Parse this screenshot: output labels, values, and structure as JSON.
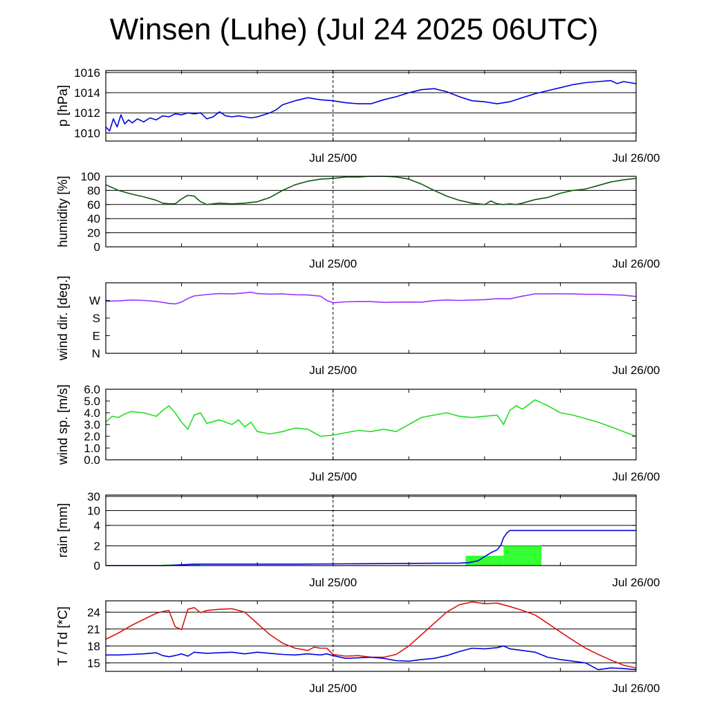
{
  "chart_data": [
    {
      "id": "pressure",
      "type": "line",
      "title": "Winsen (Luhe) (Jul 24 2025 06UTC)",
      "ylabel": "p [hPa]",
      "ylim": [
        1009.2,
        1016.2
      ],
      "yticks": [
        1010,
        1012,
        1014,
        1016
      ],
      "yticklabels": [
        "1010",
        "1012",
        "1014",
        "1016"
      ],
      "grid": true,
      "xlim": [
        0,
        42
      ],
      "xtick_labels": [
        {
          "x": 18,
          "label": "Jul 25/00"
        },
        {
          "x": 42,
          "label": "Jul 26/00"
        }
      ],
      "series": [
        {
          "color": "#0000dd",
          "x": [
            0,
            0.3,
            0.6,
            0.9,
            1.2,
            1.5,
            1.8,
            2.1,
            2.5,
            3,
            3.5,
            4,
            4.5,
            5,
            5.5,
            6,
            6.5,
            7,
            7.5,
            8,
            8.5,
            9,
            9.5,
            10,
            10.5,
            11,
            11.5,
            12,
            12.5,
            13,
            13.5,
            14,
            15,
            16,
            17,
            18,
            18.5,
            19,
            20,
            21,
            22,
            23,
            24,
            25,
            26,
            27,
            28,
            29,
            30,
            31,
            32,
            33,
            34,
            35,
            36,
            37,
            38,
            39,
            40,
            40.5,
            41,
            41.5,
            42
          ],
          "y": [
            1010.6,
            1010.2,
            1011.4,
            1010.6,
            1011.8,
            1010.9,
            1011.3,
            1011.0,
            1011.4,
            1011.1,
            1011.5,
            1011.3,
            1011.7,
            1011.6,
            1011.9,
            1011.8,
            1012.0,
            1011.9,
            1012.0,
            1011.4,
            1011.6,
            1012.1,
            1011.7,
            1011.6,
            1011.7,
            1011.6,
            1011.5,
            1011.6,
            1011.8,
            1012.0,
            1012.3,
            1012.8,
            1013.2,
            1013.5,
            1013.3,
            1013.2,
            1013.1,
            1013.0,
            1012.9,
            1012.9,
            1013.3,
            1013.6,
            1014.0,
            1014.3,
            1014.4,
            1014.1,
            1013.6,
            1013.2,
            1013.1,
            1012.9,
            1013.1,
            1013.5,
            1013.9,
            1014.2,
            1014.5,
            1014.8,
            1015.0,
            1015.1,
            1015.2,
            1014.9,
            1015.1,
            1015.0,
            1014.9
          ]
        }
      ]
    },
    {
      "id": "humidity",
      "type": "line",
      "ylabel": "humidity [%]",
      "ylim": [
        0,
        100
      ],
      "yticks": [
        0,
        20,
        40,
        60,
        80,
        100
      ],
      "yticklabels": [
        "0",
        "20",
        "40",
        "60",
        "80",
        "100"
      ],
      "grid": true,
      "xlim": [
        0,
        42
      ],
      "xtick_labels": [
        {
          "x": 18,
          "label": "Jul 25/00"
        },
        {
          "x": 42,
          "label": "Jul 26/00"
        }
      ],
      "series": [
        {
          "color": "#0a5a0a",
          "x": [
            0,
            1,
            2,
            3,
            4,
            4.5,
            5,
            5.5,
            6,
            6.5,
            7,
            7.5,
            8,
            9,
            10,
            11,
            12,
            13,
            14,
            15,
            16,
            17,
            18,
            19,
            20,
            21,
            22,
            23,
            24,
            25,
            26,
            27,
            28,
            29,
            30,
            30.5,
            31,
            31.5,
            32,
            32.5,
            33,
            34,
            35,
            36,
            37,
            38,
            39,
            40,
            41,
            42
          ],
          "y": [
            88,
            80,
            75,
            71,
            66,
            62,
            61,
            61,
            68,
            73,
            72,
            64,
            60,
            62,
            61,
            62,
            64,
            70,
            80,
            88,
            93,
            96,
            97,
            99,
            99,
            100,
            100,
            99,
            96,
            89,
            80,
            72,
            66,
            62,
            60,
            65,
            61,
            60,
            61,
            60,
            62,
            67,
            70,
            76,
            80,
            82,
            87,
            92,
            95,
            97
          ]
        }
      ]
    },
    {
      "id": "wind-direction",
      "type": "line",
      "ylabel": "wind dir. [deg.]",
      "ylim": [
        0,
        360
      ],
      "yticks": [
        0,
        90,
        180,
        270
      ],
      "yticklabels": [
        "N",
        "E",
        "S",
        "W"
      ],
      "grid": false,
      "xlim": [
        0,
        42
      ],
      "xtick_labels": [
        {
          "x": 18,
          "label": "Jul 25/00"
        },
        {
          "x": 42,
          "label": "Jul 26/00"
        }
      ],
      "series": [
        {
          "color": "#9b30ff",
          "x": [
            0,
            1,
            2,
            3,
            4,
            4.5,
            5,
            5.5,
            6,
            6.5,
            7,
            8,
            9,
            10,
            11,
            11.5,
            12,
            13,
            14,
            15,
            16,
            17,
            17.5,
            18,
            19,
            20,
            21,
            22,
            23,
            24,
            25,
            26,
            27,
            28,
            29,
            30,
            31,
            32,
            33,
            34,
            35,
            36,
            37,
            38,
            39,
            40,
            41,
            42
          ],
          "y": [
            265,
            268,
            272,
            270,
            265,
            260,
            255,
            252,
            262,
            280,
            293,
            300,
            305,
            303,
            308,
            312,
            305,
            302,
            303,
            299,
            298,
            292,
            270,
            258,
            263,
            264,
            264,
            260,
            261,
            262,
            261,
            269,
            272,
            270,
            272,
            274,
            279,
            278,
            292,
            303,
            304,
            304,
            303,
            301,
            301,
            299,
            297,
            290
          ]
        }
      ]
    },
    {
      "id": "wind-speed",
      "type": "line",
      "ylabel": "wind sp. [m/s]",
      "ylim": [
        0,
        6
      ],
      "yticks": [
        0,
        1,
        2,
        3,
        4,
        5,
        6
      ],
      "yticklabels": [
        "0.0",
        "1.0",
        "2.0",
        "3.0",
        "4.0",
        "5.0",
        "6.0"
      ],
      "grid": false,
      "xlim": [
        0,
        42
      ],
      "xtick_labels": [
        {
          "x": 18,
          "label": "Jul 25/00"
        },
        {
          "x": 42,
          "label": "Jul 26/00"
        }
      ],
      "series": [
        {
          "color": "#22dd22",
          "x": [
            0,
            0.5,
            1,
            1.5,
            2,
            3,
            4,
            4.5,
            5,
            5.5,
            6,
            6.5,
            7,
            7.5,
            8,
            9,
            10,
            10.5,
            11,
            11.5,
            12,
            12.5,
            13,
            14,
            15,
            16,
            17,
            18,
            19,
            20,
            21,
            22,
            23,
            24,
            25,
            26,
            27,
            28,
            29,
            30,
            31,
            31.5,
            32,
            32.5,
            33,
            34,
            35,
            36,
            37,
            38,
            39,
            40,
            41,
            42
          ],
          "y": [
            3.2,
            3.7,
            3.6,
            3.9,
            4.1,
            4.0,
            3.7,
            4.2,
            4.6,
            4.0,
            3.2,
            2.6,
            3.8,
            4.0,
            3.1,
            3.4,
            3.0,
            3.4,
            2.8,
            3.2,
            2.4,
            2.3,
            2.2,
            2.4,
            2.7,
            2.6,
            2.0,
            2.1,
            2.3,
            2.5,
            2.4,
            2.6,
            2.4,
            3.0,
            3.6,
            3.8,
            4.0,
            3.7,
            3.6,
            3.7,
            3.8,
            3.0,
            4.2,
            4.6,
            4.3,
            5.1,
            4.6,
            4.0,
            3.8,
            3.5,
            3.2,
            2.8,
            2.4,
            2.0
          ]
        }
      ]
    },
    {
      "id": "rain",
      "type": "bar",
      "ylabel": "rain [mm]",
      "ylim": [
        0,
        30
      ],
      "yticks": [
        0,
        2,
        4,
        10,
        30
      ],
      "yticklabels": [
        "0",
        "2",
        "4",
        "10",
        "30"
      ],
      "grid": true,
      "xlim": [
        0,
        42
      ],
      "xtick_labels": [
        {
          "x": 18,
          "label": "Jul 25/00"
        },
        {
          "x": 42,
          "label": "Jul 26/00"
        }
      ],
      "bars": [
        {
          "x0": 4.5,
          "x1": 7.5,
          "value": 0.1
        },
        {
          "x0": 28.5,
          "x1": 31.5,
          "value": 1.0
        },
        {
          "x0": 31.5,
          "x1": 34.5,
          "value": 2.0
        }
      ],
      "bar_color": "#33ff33",
      "series": [
        {
          "color": "#0000dd",
          "x": [
            0,
            4.5,
            5.5,
            7,
            15,
            28,
            28.8,
            29.5,
            30,
            30.5,
            31,
            31.3,
            31.5,
            31.8,
            32,
            42
          ],
          "y": [
            0,
            0,
            0.05,
            0.15,
            0.15,
            0.25,
            0.3,
            0.5,
            0.9,
            1.3,
            1.6,
            2.1,
            2.8,
            3.3,
            3.5,
            3.5
          ]
        }
      ]
    },
    {
      "id": "temperature",
      "type": "line",
      "ylabel": "T / Td [*C]",
      "ylim": [
        13.5,
        26
      ],
      "yticks": [
        15,
        18,
        21,
        24
      ],
      "yticklabels": [
        "15",
        "18",
        "21",
        "24"
      ],
      "grid": true,
      "xlim": [
        0,
        42
      ],
      "xtick_labels": [
        {
          "x": 18,
          "label": "Jul 25/00"
        },
        {
          "x": 42,
          "label": "Jul 26/00"
        }
      ],
      "series": [
        {
          "color": "#dd1111",
          "x": [
            0,
            1,
            2,
            3,
            4,
            4.5,
            5,
            5.5,
            6,
            6.5,
            7,
            7.5,
            8,
            9,
            10,
            11,
            12,
            13,
            14,
            15,
            16,
            16.5,
            17,
            17.5,
            18,
            19,
            20,
            21,
            22,
            23,
            24,
            25,
            26,
            27,
            28,
            29,
            30,
            31,
            32,
            33,
            34,
            35,
            36,
            37,
            38,
            39,
            40,
            41,
            42
          ],
          "y": [
            19.2,
            20.3,
            21.6,
            22.7,
            23.8,
            24.1,
            24.3,
            21.4,
            20.9,
            24.5,
            24.8,
            23.9,
            24.3,
            24.5,
            24.6,
            24.0,
            22.0,
            20.0,
            18.5,
            17.6,
            17.2,
            17.8,
            17.6,
            17.6,
            16.5,
            16.2,
            16.3,
            16.0,
            16.0,
            16.5,
            18.0,
            20.0,
            22.0,
            24.0,
            25.3,
            25.8,
            25.5,
            25.6,
            25.0,
            24.3,
            23.5,
            22.0,
            20.5,
            19.0,
            17.6,
            16.5,
            15.5,
            14.6,
            14.1
          ]
        },
        {
          "color": "#0000dd",
          "x": [
            0,
            1,
            2,
            3,
            4,
            4.5,
            5,
            5.5,
            6,
            6.5,
            7,
            8,
            9,
            10,
            11,
            12,
            13,
            14,
            15,
            16,
            17,
            17.5,
            18,
            19,
            20,
            21,
            22,
            23,
            24,
            25,
            26,
            27,
            28,
            29,
            30,
            31,
            31.5,
            32,
            33,
            34,
            35,
            36,
            37,
            38,
            39,
            40,
            41,
            42
          ],
          "y": [
            16.4,
            16.4,
            16.5,
            16.6,
            16.8,
            16.3,
            16.1,
            16.3,
            16.6,
            16.2,
            16.9,
            16.7,
            16.8,
            16.9,
            16.6,
            16.9,
            16.7,
            16.5,
            16.4,
            16.6,
            16.4,
            16.6,
            16.3,
            15.8,
            15.9,
            16.0,
            15.8,
            15.4,
            15.3,
            15.6,
            15.8,
            16.3,
            17.0,
            17.6,
            17.5,
            17.7,
            18.0,
            17.5,
            17.2,
            16.9,
            16.0,
            15.6,
            15.3,
            15.0,
            13.8,
            14.1,
            14.0,
            13.8
          ]
        }
      ]
    }
  ]
}
